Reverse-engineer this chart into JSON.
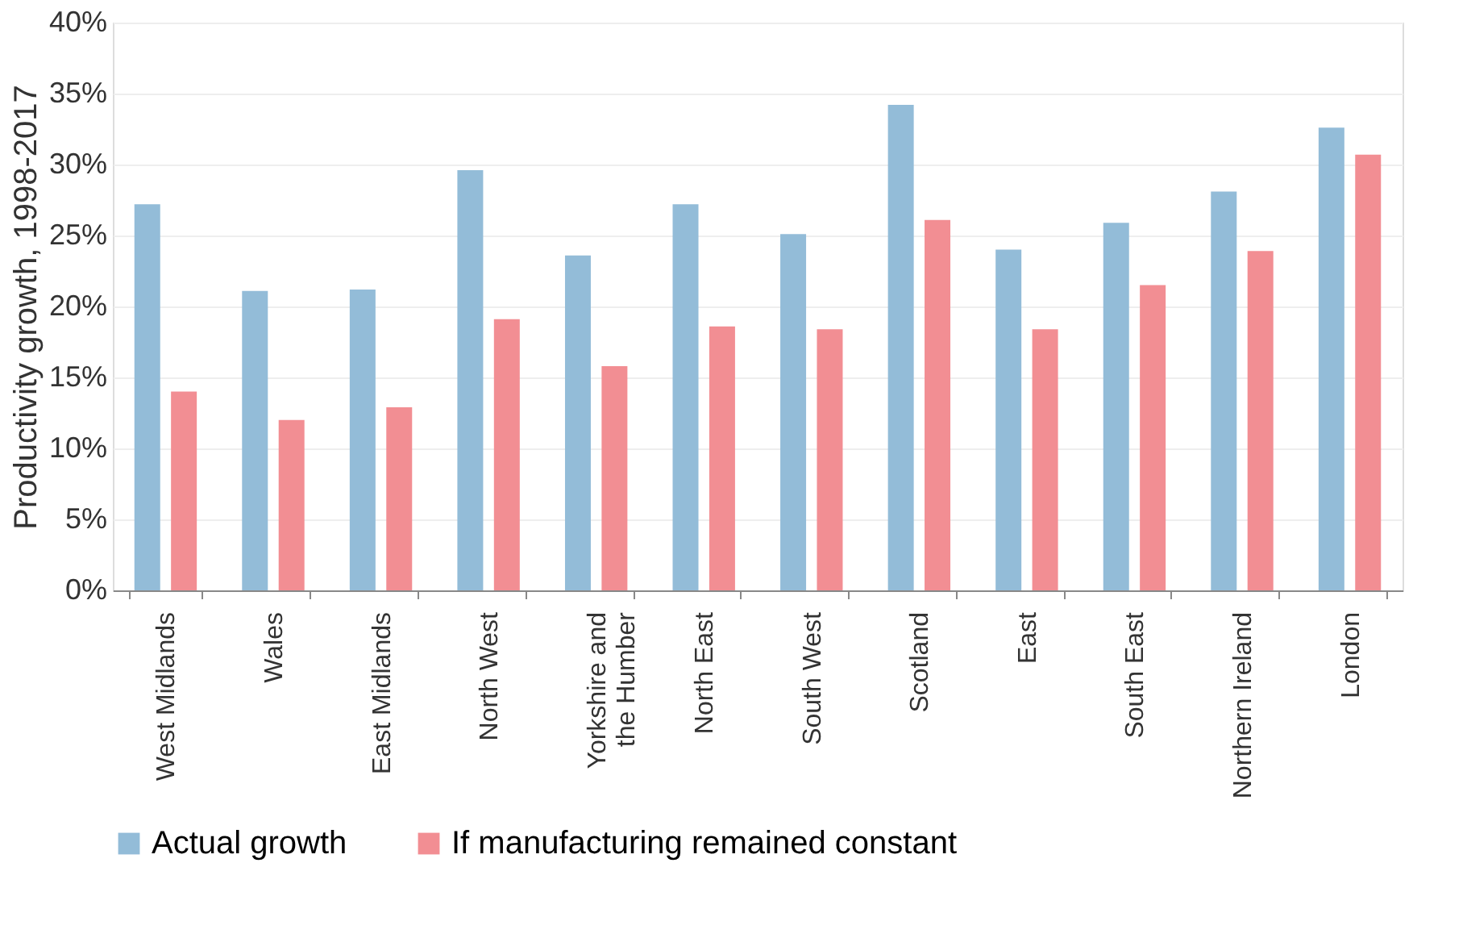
{
  "chart_data": {
    "type": "bar",
    "ylabel": "Productivity growth, 1998-2017",
    "categories": [
      "West Midlands",
      "Wales",
      "East Midlands",
      "North West",
      "Yorkshire and the Humber",
      "North East",
      "South West",
      "Scotland",
      "East",
      "South East",
      "Northern Ireland",
      "London"
    ],
    "series": [
      {
        "name": "Actual growth",
        "color": "#93bcd8",
        "values": [
          27.2,
          21.1,
          21.2,
          29.6,
          23.6,
          27.2,
          25.1,
          34.2,
          24.0,
          25.9,
          28.1,
          32.6
        ]
      },
      {
        "name": "If manufacturing remained constant",
        "color": "#f28e93",
        "values": [
          14.0,
          12.0,
          12.9,
          19.1,
          15.8,
          18.6,
          18.4,
          26.1,
          18.4,
          21.5,
          23.9,
          30.7
        ]
      }
    ],
    "ylim": [
      0,
      40
    ],
    "yticks": [
      {
        "value": 0,
        "label": "0%"
      },
      {
        "value": 5,
        "label": "5%"
      },
      {
        "value": 10,
        "label": "10%"
      },
      {
        "value": 15,
        "label": "15%"
      },
      {
        "value": 20,
        "label": "20%"
      },
      {
        "value": 25,
        "label": "25%"
      },
      {
        "value": 30,
        "label": "30%"
      },
      {
        "value": 35,
        "label": "35%"
      },
      {
        "value": 40,
        "label": "40%"
      }
    ],
    "grid": "y",
    "legend": "bottom"
  }
}
